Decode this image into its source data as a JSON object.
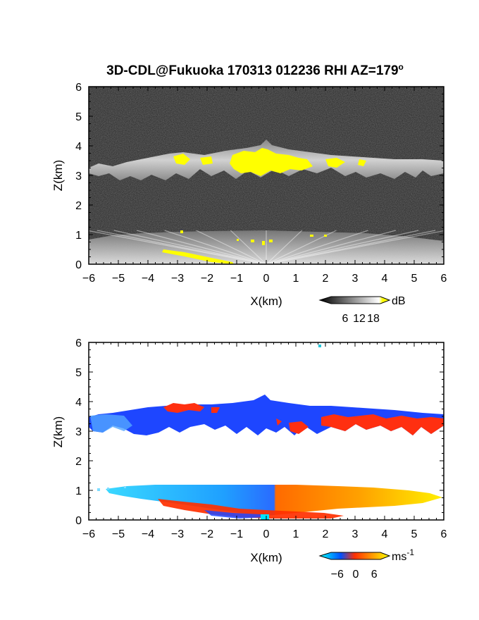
{
  "figure": {
    "title_main": "3D-CDL@Fukuoka 170313 012236 RHI AZ=179",
    "title_sup": "o"
  },
  "chart_data": [
    {
      "type": "heatmap",
      "quantity": "backscatter intensity",
      "xlabel": "X(km)",
      "ylabel": "Z(km)",
      "xlim": [
        -6,
        6
      ],
      "ylim": [
        0,
        6
      ],
      "xticks": [
        "-6",
        "-5",
        "-4",
        "-3",
        "-2",
        "-1",
        "0",
        "1",
        "2",
        "3",
        "4",
        "5",
        "6"
      ],
      "yticks": [
        "0",
        "1",
        "2",
        "3",
        "4",
        "5",
        "6"
      ],
      "colorbar": {
        "unit": "dB",
        "ticks": [
          "6",
          "12",
          "18"
        ],
        "tick_values": [
          6,
          12,
          18
        ],
        "range": [
          0,
          21
        ],
        "colors": [
          "#000000",
          "#ffffff",
          "#ffff00"
        ]
      },
      "features": [
        {
          "name": "cloud layer",
          "z_base": 2.9,
          "z_top": 3.7,
          "x_range": [
            -6,
            6
          ],
          "peak_z": 4.2,
          "peak_x": 0.1
        },
        {
          "name": "boundary layer",
          "z_base": 0,
          "z_top": 1.1,
          "x_range": [
            -6,
            6
          ]
        }
      ],
      "background": "#2c2c2c",
      "highlight_color": "#ffff00"
    },
    {
      "type": "heatmap",
      "quantity": "radial velocity",
      "xlabel": "X(km)",
      "ylabel": "Z(km)",
      "xlim": [
        -6,
        6
      ],
      "ylim": [
        0,
        6
      ],
      "xticks": [
        "-6",
        "-5",
        "-4",
        "-3",
        "-2",
        "-1",
        "0",
        "1",
        "2",
        "3",
        "4",
        "5",
        "6"
      ],
      "yticks": [
        "0",
        "1",
        "2",
        "3",
        "4",
        "5",
        "6"
      ],
      "colorbar": {
        "unit": "ms",
        "unit_sup": "-1",
        "ticks": [
          "−6",
          "0",
          "6"
        ],
        "tick_values": [
          -6,
          0,
          6
        ],
        "range": [
          -8,
          8
        ],
        "colors": [
          "#00ffff",
          "#0050ff",
          "#ff3000",
          "#ff9900",
          "#ffff00"
        ]
      },
      "features": [
        {
          "name": "cloud layer",
          "z_base": 2.9,
          "z_top": 3.7,
          "x_range": [
            -6,
            6
          ],
          "dominant_color": "#1e46ff"
        },
        {
          "name": "boundary layer",
          "z_base": 0,
          "z_top": 1.1,
          "x_range": [
            -6,
            6
          ],
          "left_color": "#00bfff",
          "right_color": "#ffc800"
        }
      ],
      "background": "#ffffff"
    }
  ]
}
